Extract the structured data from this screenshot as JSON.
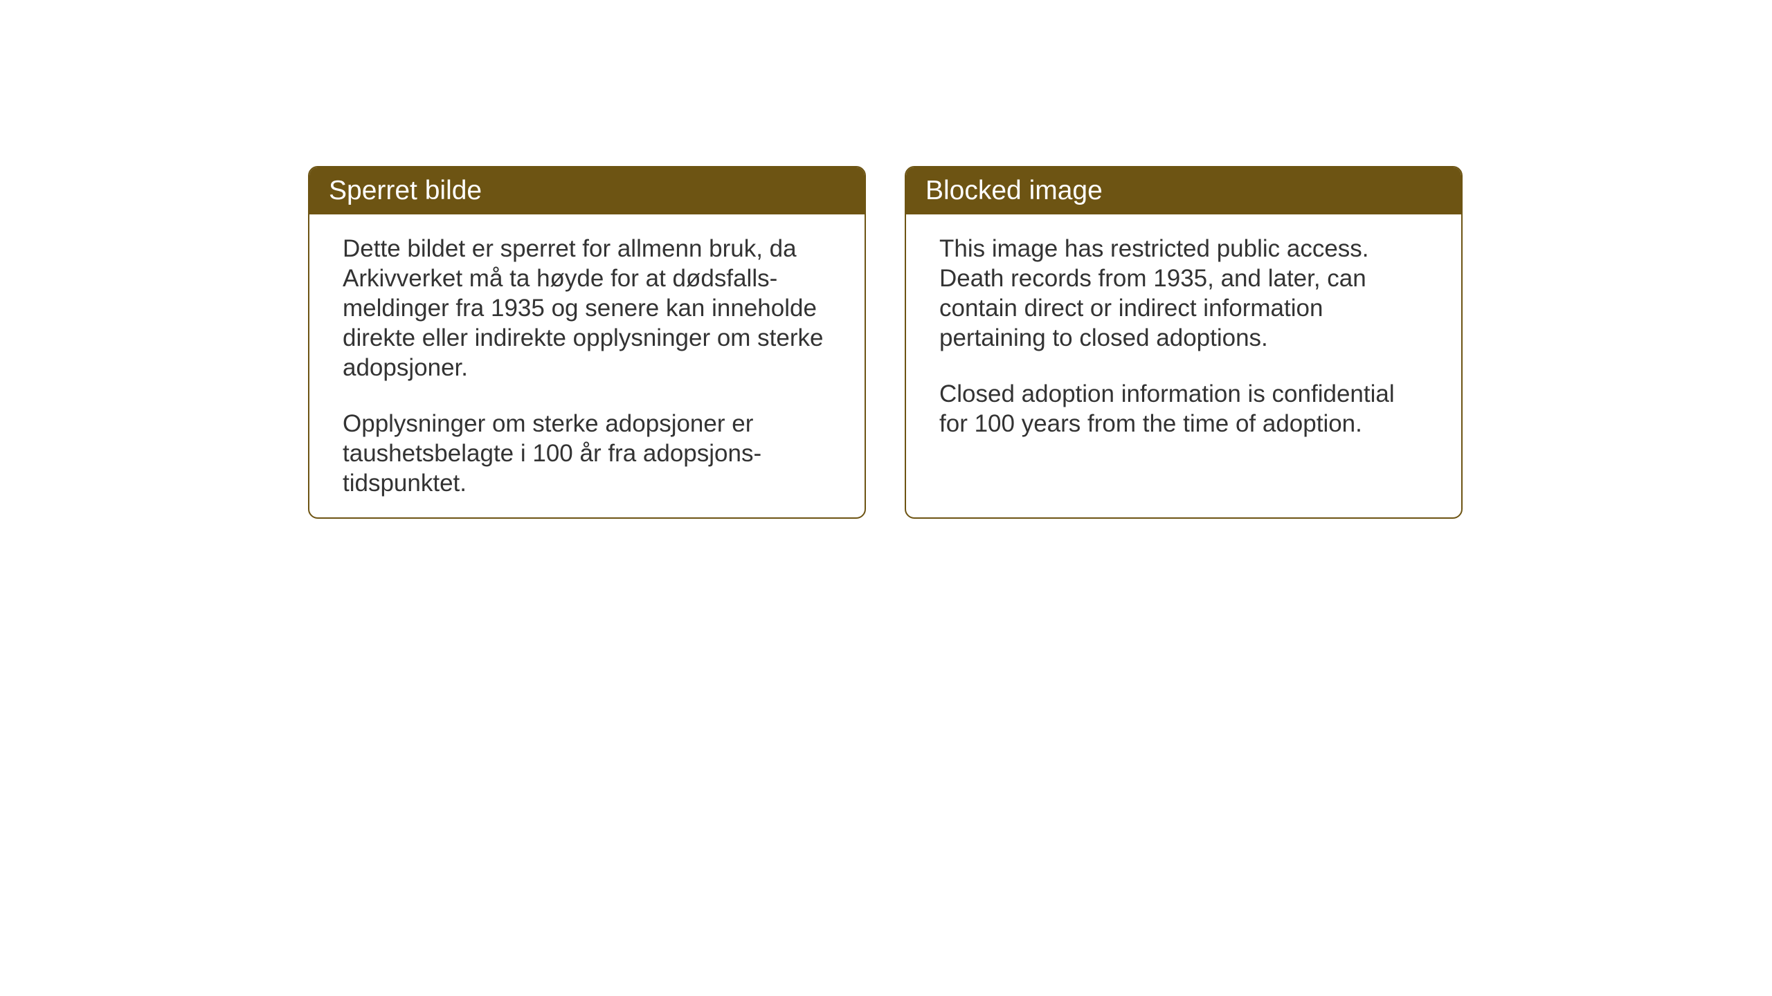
{
  "cards": {
    "norwegian": {
      "title": "Sperret bilde",
      "paragraph1": "Dette bildet er sperret for allmenn bruk, da Arkivverket må ta høyde for at dødsfalls-meldinger fra 1935 og senere kan inneholde direkte eller indirekte opplysninger om sterke adopsjoner.",
      "paragraph2": "Opplysninger om sterke adopsjoner er taushetsbelagte i 100 år fra adopsjons-tidspunktet."
    },
    "english": {
      "title": "Blocked image",
      "paragraph1": "This image has restricted public access. Death records from 1935, and later, can contain direct or indirect information pertaining to closed adoptions.",
      "paragraph2": "Closed adoption information is confidential for 100 years from the time of adoption."
    }
  },
  "styling": {
    "header_bg_color": "#6d5413",
    "header_text_color": "#ffffff",
    "border_color": "#6d5413",
    "body_text_color": "#333333",
    "background_color": "#ffffff",
    "header_fontsize": 39,
    "body_fontsize": 35,
    "border_radius": 14,
    "border_width": 2
  }
}
